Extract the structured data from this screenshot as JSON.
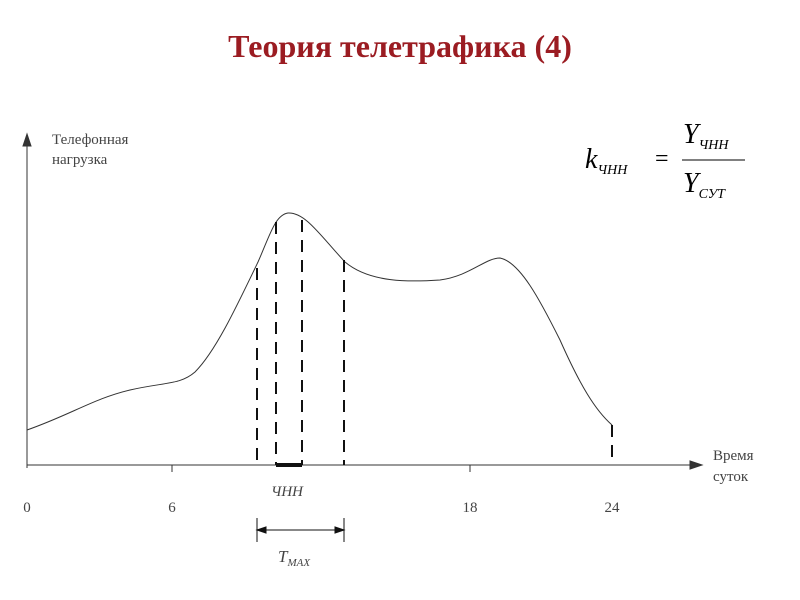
{
  "title": "Теория телетрафика (4)",
  "y_axis_label": [
    "Телефонная",
    "нагрузка"
  ],
  "x_axis_label": [
    "Время",
    "суток"
  ],
  "x_ticks": [
    "0",
    "6",
    "18",
    "24"
  ],
  "peak_hour_label": "ЧНН",
  "tmax_label": {
    "main": "T",
    "sub": "MAX"
  },
  "formula": {
    "k": "k",
    "k_sub": "ЧНН",
    "equals": "=",
    "num": "Y",
    "num_sub": "ЧНН",
    "den": "Y",
    "den_sub": "СУТ"
  }
}
